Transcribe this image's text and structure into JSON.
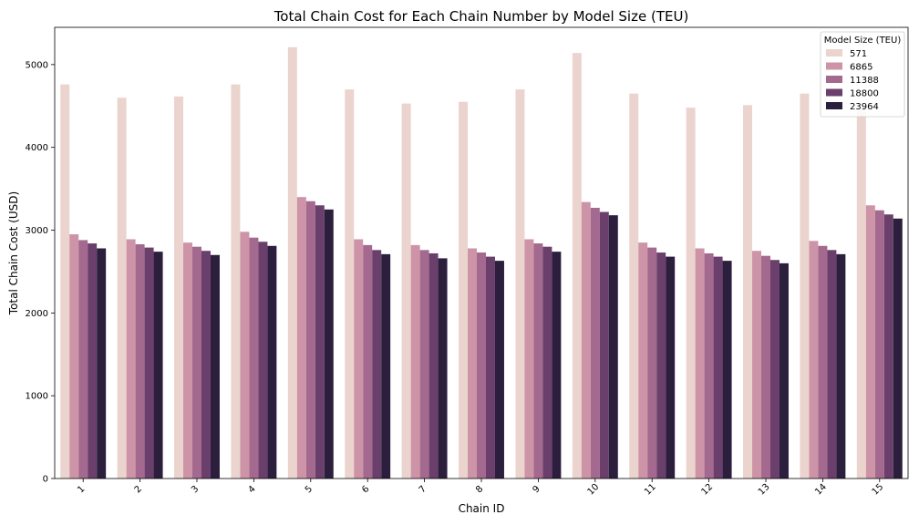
{
  "chart_data": {
    "type": "bar",
    "title": "Total Chain Cost for Each Chain Number by Model Size (TEU)",
    "xlabel": "Chain ID",
    "ylabel": "Total Chain Cost (USD)",
    "ylim": [
      0,
      5450
    ],
    "yticks": [
      0,
      1000,
      2000,
      3000,
      4000,
      5000
    ],
    "categories": [
      "1",
      "2",
      "3",
      "4",
      "5",
      "6",
      "7",
      "8",
      "9",
      "10",
      "11",
      "12",
      "13",
      "14",
      "15"
    ],
    "legend": {
      "title": "Model Size (TEU)",
      "placement": "top-right"
    },
    "grid": false,
    "series": [
      {
        "name": "571",
        "color": "#ebd3ce",
        "values": [
          4760,
          4600,
          4615,
          4760,
          5210,
          4700,
          4530,
          4550,
          4700,
          5140,
          4650,
          4480,
          4510,
          4650,
          4460
        ]
      },
      {
        "name": "6865",
        "color": "#cd94a8",
        "values": [
          2950,
          2890,
          2850,
          2980,
          3400,
          2890,
          2820,
          2780,
          2890,
          3340,
          2850,
          2780,
          2750,
          2870,
          3300
        ]
      },
      {
        "name": "11388",
        "color": "#a4698e",
        "values": [
          2880,
          2830,
          2800,
          2910,
          3350,
          2820,
          2760,
          2730,
          2840,
          3270,
          2790,
          2720,
          2690,
          2810,
          3240
        ]
      },
      {
        "name": "18800",
        "color": "#6b3f6c",
        "values": [
          2840,
          2790,
          2750,
          2860,
          3300,
          2760,
          2720,
          2680,
          2800,
          3220,
          2730,
          2680,
          2640,
          2760,
          3190
        ]
      },
      {
        "name": "23964",
        "color": "#2c1e3d",
        "values": [
          2780,
          2740,
          2700,
          2810,
          3250,
          2710,
          2660,
          2630,
          2740,
          3180,
          2680,
          2630,
          2600,
          2710,
          3140
        ]
      }
    ]
  }
}
